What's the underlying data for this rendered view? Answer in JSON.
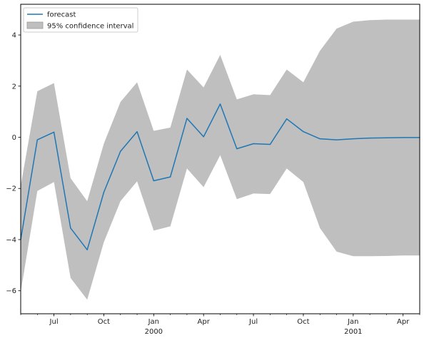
{
  "chart_data": {
    "type": "line",
    "title": "",
    "xlabel": "",
    "ylabel": "",
    "x": [
      "1999-05",
      "1999-06",
      "1999-07",
      "1999-08",
      "1999-09",
      "1999-10",
      "1999-11",
      "1999-12",
      "2000-01",
      "2000-02",
      "2000-03",
      "2000-04",
      "2000-05",
      "2000-06",
      "2000-07",
      "2000-08",
      "2000-09",
      "2000-10",
      "2000-11",
      "2000-12",
      "2001-01",
      "2001-02",
      "2001-03",
      "2001-04",
      "2001-05"
    ],
    "xlim": [
      "1999-05",
      "2001-05"
    ],
    "ylim": [
      -6.9,
      5.2
    ],
    "yticks": [
      -6,
      -4,
      -2,
      0,
      2,
      4
    ],
    "xticks": [
      {
        "date": "1999-07",
        "label": "Jul",
        "sublabel": ""
      },
      {
        "date": "1999-10",
        "label": "Oct",
        "sublabel": ""
      },
      {
        "date": "2000-01",
        "label": "Jan",
        "sublabel": "2000"
      },
      {
        "date": "2000-04",
        "label": "Apr",
        "sublabel": ""
      },
      {
        "date": "2000-07",
        "label": "Jul",
        "sublabel": ""
      },
      {
        "date": "2000-10",
        "label": "Oct",
        "sublabel": ""
      },
      {
        "date": "2001-01",
        "label": "Jan",
        "sublabel": "2001"
      },
      {
        "date": "2001-04",
        "label": "Apr",
        "sublabel": ""
      }
    ],
    "grid": false,
    "legend_position": "top-left",
    "series": [
      {
        "name": "forecast",
        "color": "#1f77b4",
        "values": [
          -4.0,
          -0.1,
          0.2,
          -3.55,
          -4.4,
          -2.15,
          -0.55,
          0.22,
          -1.7,
          -1.55,
          0.74,
          0.02,
          1.3,
          -0.45,
          -0.25,
          -0.28,
          0.72,
          0.22,
          -0.06,
          -0.1,
          -0.06,
          -0.03,
          -0.02,
          -0.01,
          -0.01
        ]
      }
    ],
    "band": {
      "name": "95% confidence interval",
      "color": "#bfbfbf",
      "upper": [
        -1.9,
        1.8,
        2.12,
        -1.6,
        -2.5,
        -0.25,
        1.38,
        2.15,
        0.25,
        0.38,
        2.65,
        1.95,
        3.22,
        1.48,
        1.68,
        1.65,
        2.65,
        2.15,
        3.38,
        4.25,
        4.52,
        4.58,
        4.6,
        4.6,
        4.6
      ],
      "lower": [
        -6.05,
        -2.1,
        -1.75,
        -5.5,
        -6.35,
        -4.1,
        -2.5,
        -1.72,
        -3.65,
        -3.48,
        -1.22,
        -1.95,
        -0.7,
        -2.42,
        -2.2,
        -2.22,
        -1.22,
        -1.75,
        -3.55,
        -4.47,
        -4.65,
        -4.65,
        -4.64,
        -4.62,
        -4.62
      ]
    }
  }
}
